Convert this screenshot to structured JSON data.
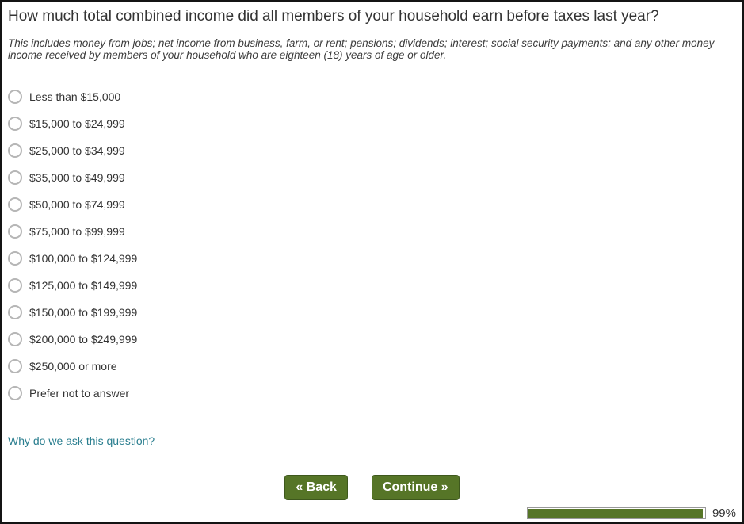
{
  "question": {
    "title": "How much total combined income did all members of your household earn before taxes last year?",
    "subtitle": "This includes money from jobs; net income from business, farm, or rent; pensions; dividends; interest; social security payments; and any other money income received by members of your household who are eighteen (18) years of age or older."
  },
  "options": [
    "Less than $15,000",
    "$15,000 to $24,999",
    "$25,000 to $34,999",
    "$35,000 to $49,999",
    "$50,000 to $74,999",
    "$75,000 to $99,999",
    "$100,000 to $124,999",
    "$125,000 to $149,999",
    "$150,000 to $199,999",
    "$200,000 to $249,999",
    "$250,000 or more",
    "Prefer not to answer"
  ],
  "link": {
    "label": "Why do we ask this question?"
  },
  "buttons": {
    "back": "« Back",
    "continue": "Continue »"
  },
  "progress": {
    "percent": 99,
    "label": "99%"
  },
  "colors": {
    "button_green": "#567527",
    "button_border_green": "#3e581d",
    "link_teal": "#2a7e8f",
    "progress_green": "#567527"
  }
}
